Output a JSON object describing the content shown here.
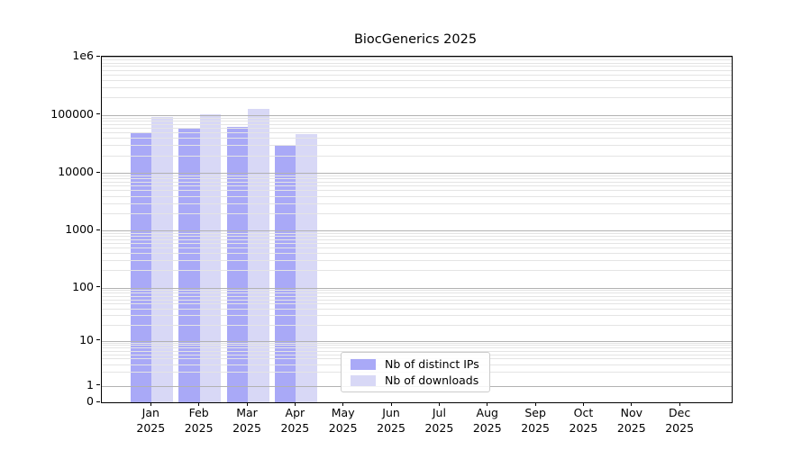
{
  "chart_data": {
    "type": "bar",
    "title": "BiocGenerics 2025",
    "categories": [
      "Jan",
      "Feb",
      "Mar",
      "Apr",
      "May",
      "Jun",
      "Jul",
      "Aug",
      "Sep",
      "Oct",
      "Nov",
      "Dec"
    ],
    "category_year_line": "2025",
    "series": [
      {
        "name": "Nb of distinct IPs",
        "color": "#a9a9f7",
        "values": [
          51000,
          57000,
          63000,
          30000,
          null,
          null,
          null,
          null,
          null,
          null,
          null,
          null
        ]
      },
      {
        "name": "Nb of downloads",
        "color": "#d8d8f6",
        "values": [
          92000,
          104000,
          125000,
          47000,
          null,
          null,
          null,
          null,
          null,
          null,
          null,
          null
        ]
      }
    ],
    "yscale": "symlog",
    "ylim": [
      0,
      1000000
    ],
    "ytick_values": [
      1000000,
      100000,
      10000,
      1000,
      100,
      10,
      1,
      0
    ],
    "ytick_labels": [
      "1e6",
      "100000",
      "10000",
      "1000",
      "100",
      "10",
      "1",
      "0"
    ],
    "grid": "horizontal major and minor log gridlines, drawn over bars",
    "legend_position": "lower center"
  }
}
